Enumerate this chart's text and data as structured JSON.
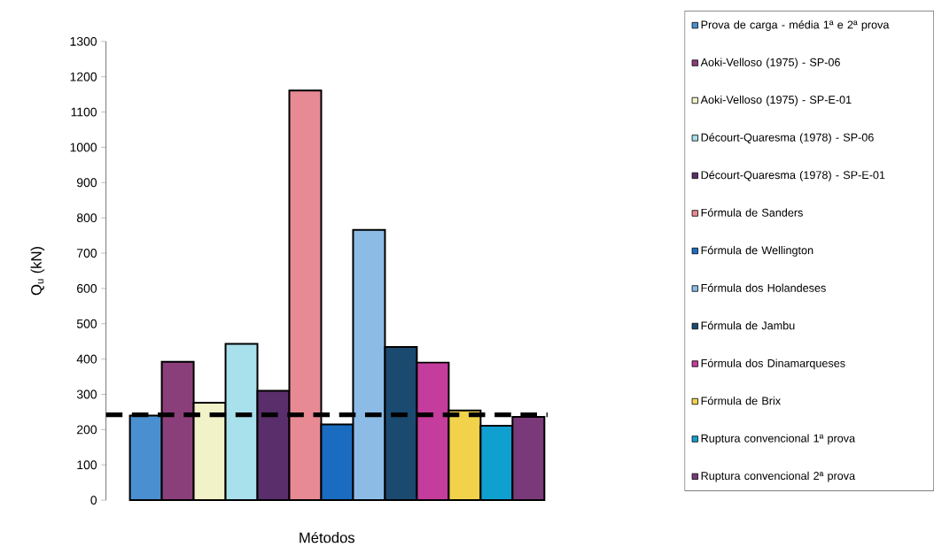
{
  "chart_data": {
    "type": "bar",
    "xlabel": "Métodos",
    "ylabel": "Q$_{u}$ (kN)",
    "categories": [
      null
    ],
    "ylim": [
      0,
      1300
    ],
    "yticks": [
      0,
      100,
      200,
      300,
      400,
      500,
      600,
      700,
      800,
      900,
      1000,
      1100,
      1200,
      1300
    ],
    "legend": "right",
    "grid": false,
    "ref_lines": [
      {
        "axis": "y",
        "value": 242,
        "color": "#000000",
        "line_style": "dashed"
      }
    ],
    "series": [
      {
        "name": "Prova de carga - média 1ª e 2ª prova",
        "color": "#4a90d0",
        "values": [
          240
        ]
      },
      {
        "name": "Aoki-Velloso (1975) - SP-06",
        "color": "#8b3f7a",
        "values": [
          392
        ]
      },
      {
        "name": "Aoki-Velloso (1975) - SP-E-01",
        "color": "#f2f2c8",
        "values": [
          276
        ]
      },
      {
        "name": "Décourt-Quaresma (1978) - SP-06",
        "color": "#a8e0ec",
        "values": [
          443
        ]
      },
      {
        "name": "Décourt-Quaresma (1978) - SP-E-01",
        "color": "#5a2e6a",
        "values": [
          310
        ]
      },
      {
        "name": "Fórmula de Sanders",
        "color": "#e88a94",
        "values": [
          1161
        ]
      },
      {
        "name": "Fórmula de Wellington",
        "color": "#1a6cc0",
        "values": [
          215
        ]
      },
      {
        "name": "Fórmula dos Holandeses",
        "color": "#8cbce6",
        "values": [
          766
        ]
      },
      {
        "name": "Fórmula de Jambu",
        "color": "#1a4a70",
        "values": [
          434
        ]
      },
      {
        "name": "Fórmula dos Dinamarqueses",
        "color": "#c43c9c",
        "values": [
          390
        ]
      },
      {
        "name": "Fórmula de Brix",
        "color": "#f2d24a",
        "values": [
          254
        ]
      },
      {
        "name": "Ruptura convencional 1ª prova",
        "color": "#10a0d0",
        "values": [
          211
        ]
      },
      {
        "name": "Ruptura convencional 2ª prova",
        "color": "#7a3a7a",
        "values": [
          236
        ]
      }
    ]
  }
}
